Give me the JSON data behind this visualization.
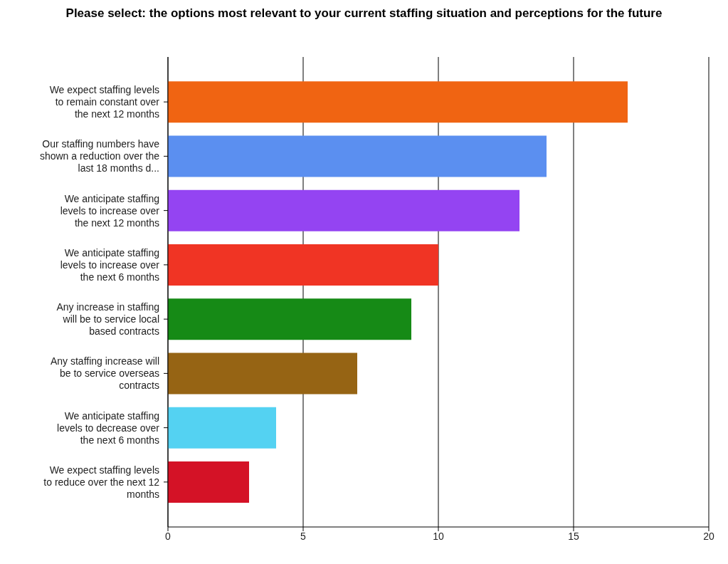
{
  "chart_data": {
    "type": "bar",
    "orientation": "horizontal",
    "title": "Please select: the options most relevant to your current staffing situation and perceptions for the future",
    "categories": [
      "We expect staffing levels to remain constant over the next 12 months",
      "Our staffing numbers have shown a reduction over the last 18 months d...",
      "We anticipate staffing levels to increase over the next 12 months",
      "We anticipate staffing levels to increase over the next 6 months",
      "Any increase in staffing will be to service local based contracts",
      "Any staffing increase will be to service overseas contracts",
      "We anticipate staffing levels to decrease over the next 6 months",
      "We expect staffing levels to reduce over the next 12 months"
    ],
    "values": [
      17,
      14,
      13,
      10,
      9,
      7,
      4,
      3
    ],
    "colors": [
      "#f06412",
      "#5b8ff0",
      "#9444f2",
      "#f03424",
      "#168a16",
      "#966414",
      "#54d2f2",
      "#d41226"
    ],
    "xlim": [
      0,
      20
    ],
    "xticks": [
      0,
      5,
      10,
      15,
      20
    ],
    "grid": "x"
  }
}
